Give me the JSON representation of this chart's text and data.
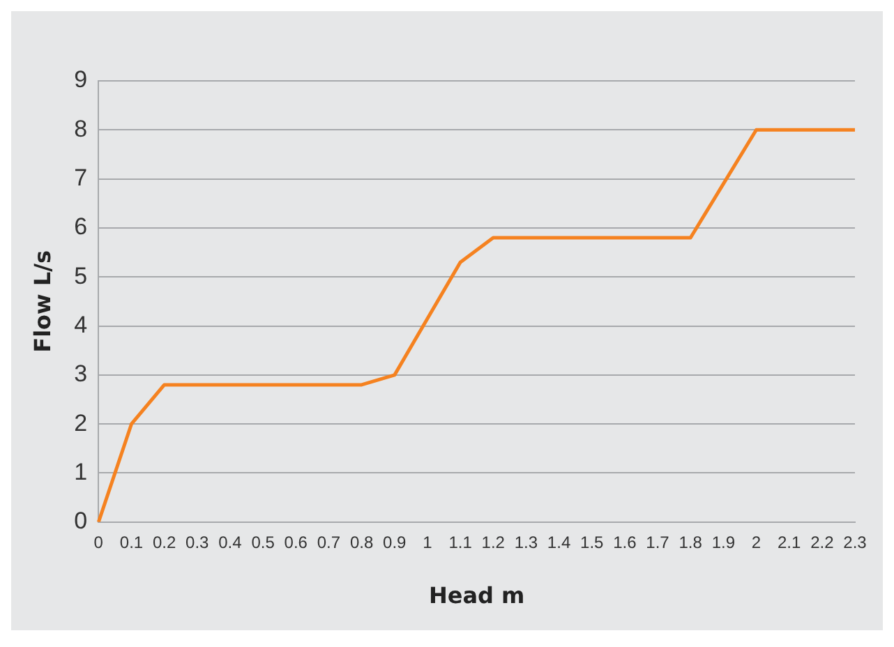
{
  "chart_data": {
    "type": "line",
    "xlabel": "Head m",
    "ylabel": "Flow L/s",
    "categories": [
      "0",
      "0.1",
      "0.2",
      "0.3",
      "0.4",
      "0.5",
      "0.6",
      "0.7",
      "0.8",
      "0.9",
      "1",
      "1.1",
      "1.2",
      "1.3",
      "1.4",
      "1.5",
      "1.6",
      "1.7",
      "1.8",
      "1.9",
      "2",
      "2.1",
      "2.2",
      "2.3"
    ],
    "series": [
      {
        "color": "#f58220",
        "values": [
          0,
          2.0,
          2.8,
          2.8,
          2.8,
          2.8,
          2.8,
          2.8,
          2.8,
          3.0,
          4.15,
          5.3,
          5.8,
          5.8,
          5.8,
          5.8,
          5.8,
          5.8,
          5.8,
          6.9,
          8.0,
          8.0,
          8.0,
          8.0
        ]
      }
    ],
    "ylim": [
      0,
      9
    ],
    "yticks": [
      0,
      1,
      2,
      3,
      4,
      5,
      6,
      7,
      8,
      9
    ],
    "grid": "y",
    "legend": false,
    "marker": "none",
    "line_style": "solid"
  }
}
